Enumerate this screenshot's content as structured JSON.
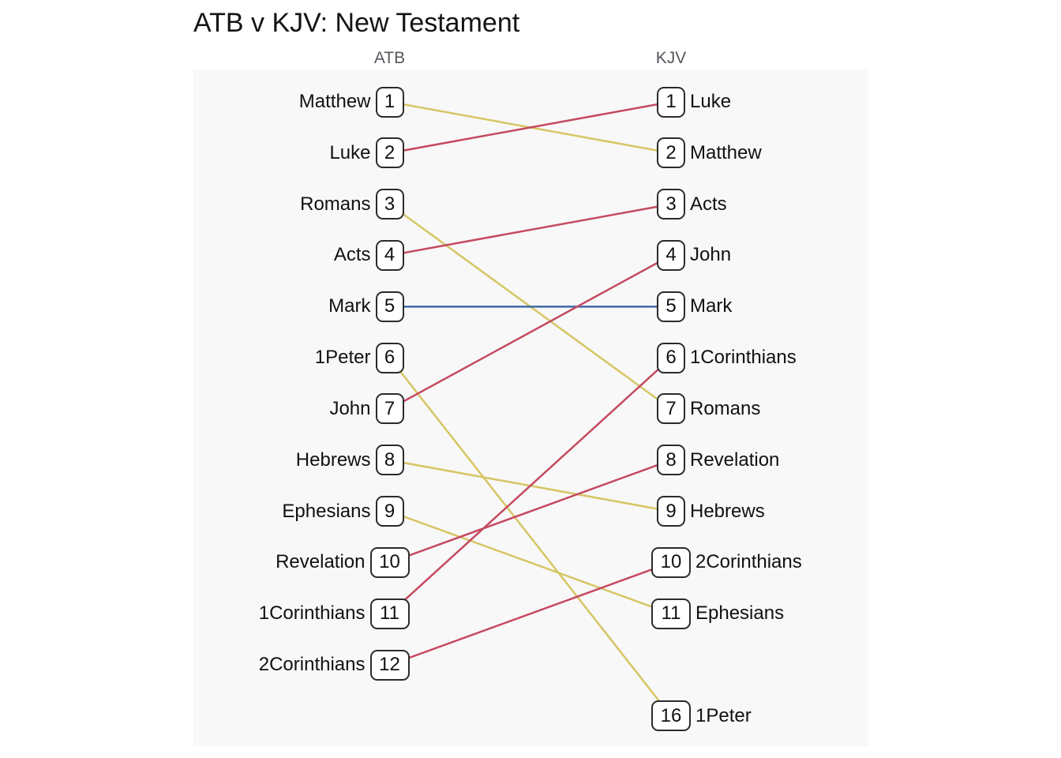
{
  "title": "ATB v KJV: New Testament",
  "columns": {
    "left": "ATB",
    "right": "KJV"
  },
  "colors": {
    "up": "#c54a60",
    "down": "#d6c564",
    "same": "#3d69a8",
    "panel_bg": "#f8f8f8",
    "box_border": "#2b2b2b",
    "header_text": "#54575c",
    "text": "#111111"
  },
  "chart_data": {
    "type": "slope",
    "title": "ATB v KJV: New Testament",
    "left_axis_label": "ATB",
    "right_axis_label": "KJV",
    "legend_position": "none",
    "grid": false,
    "books": [
      {
        "name": "Matthew",
        "atb_rank": 1,
        "kjv_rank": 2,
        "direction": "down"
      },
      {
        "name": "Luke",
        "atb_rank": 2,
        "kjv_rank": 1,
        "direction": "up"
      },
      {
        "name": "Romans",
        "atb_rank": 3,
        "kjv_rank": 7,
        "direction": "down"
      },
      {
        "name": "Acts",
        "atb_rank": 4,
        "kjv_rank": 3,
        "direction": "up"
      },
      {
        "name": "Mark",
        "atb_rank": 5,
        "kjv_rank": 5,
        "direction": "same"
      },
      {
        "name": "1Peter",
        "atb_rank": 6,
        "kjv_rank": 16,
        "direction": "down"
      },
      {
        "name": "John",
        "atb_rank": 7,
        "kjv_rank": 4,
        "direction": "up"
      },
      {
        "name": "Hebrews",
        "atb_rank": 8,
        "kjv_rank": 9,
        "direction": "down"
      },
      {
        "name": "Ephesians",
        "atb_rank": 9,
        "kjv_rank": 11,
        "direction": "down"
      },
      {
        "name": "Revelation",
        "atb_rank": 10,
        "kjv_rank": 8,
        "direction": "up"
      },
      {
        "name": "1Corinthians",
        "atb_rank": 11,
        "kjv_rank": 6,
        "direction": "up"
      },
      {
        "name": "2Corinthians",
        "atb_rank": 12,
        "kjv_rank": 10,
        "direction": "up"
      }
    ],
    "right_slot_overrides": {
      "16": 13
    }
  }
}
